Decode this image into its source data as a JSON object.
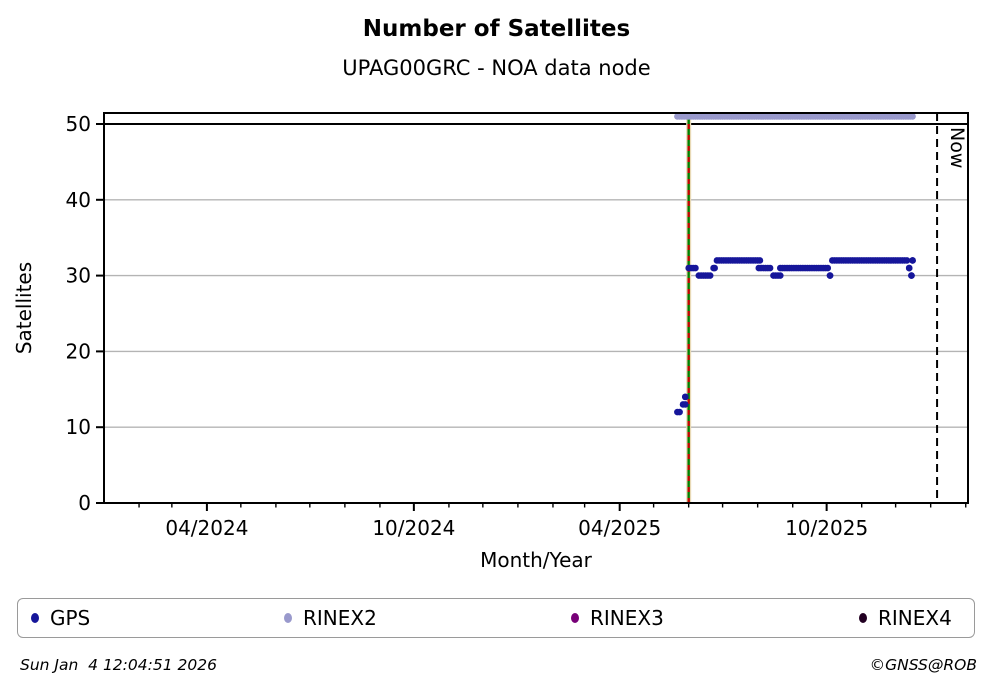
{
  "title": "Number of Satellites",
  "subtitle": "UPAG00GRC - NOA data node",
  "footer": {
    "timestamp": "Sun Jan  4 12:04:51 2026",
    "copyright": "©GNSS@ROB"
  },
  "legend": [
    {
      "label": "GPS",
      "color": "#16169a"
    },
    {
      "label": "RINEX2",
      "color": "#9999cc"
    },
    {
      "label": "RINEX3",
      "color": "#770077"
    },
    {
      "label": "RINEX4",
      "color": "#220022"
    }
  ],
  "chart_data": {
    "type": "scatter",
    "title": "Number of Satellites",
    "subtitle": "UPAG00GRC - NOA data node",
    "xlabel": "Month/Year",
    "ylabel": "Satellites",
    "x_range": [
      "2024-01-01",
      "2026-02-03"
    ],
    "ylim": [
      0,
      51.5
    ],
    "y_ticks": [
      0,
      10,
      20,
      30,
      40,
      50
    ],
    "grid_y_values": [
      10,
      20,
      30,
      40
    ],
    "grid": "horizontal-only",
    "legend_position": "bottom",
    "x_major_ticks": [
      {
        "label": "04/2024",
        "date": "2024-04-01"
      },
      {
        "label": "10/2024",
        "date": "2024-10-01"
      },
      {
        "label": "04/2025",
        "date": "2025-04-01"
      },
      {
        "label": "10/2025",
        "date": "2025-10-01"
      }
    ],
    "x_minor_ticks": "monthly",
    "reference_lines": {
      "max_satellites": {
        "value": 50,
        "color": "#000000",
        "style": "solid"
      },
      "event": {
        "date": "2025-06-01",
        "line_color": "#008000",
        "dash_color": "#cc0000",
        "band_color": "#e8d9b5",
        "style": "green solid with red dashes over wheat band"
      },
      "now": {
        "date": "2026-01-04",
        "label": "Now",
        "color": "#000000",
        "style": "dashed"
      }
    },
    "series": [
      {
        "name": "GPS",
        "color": "#16169a",
        "segments": [
          {
            "value": 12,
            "start": "2025-05-22",
            "end": "2025-05-25"
          },
          {
            "value": 13,
            "start": "2025-05-27",
            "end": "2025-05-30"
          },
          {
            "value": 14,
            "start": "2025-05-29",
            "end": "2025-05-29"
          },
          {
            "value": 31,
            "start": "2025-06-01",
            "end": "2025-06-08"
          },
          {
            "value": 30,
            "start": "2025-06-10",
            "end": "2025-06-21"
          },
          {
            "value": 31,
            "start": "2025-06-23",
            "end": "2025-06-24"
          },
          {
            "value": 32,
            "start": "2025-06-26",
            "end": "2025-08-04"
          },
          {
            "value": 31,
            "start": "2025-08-02",
            "end": "2025-08-13"
          },
          {
            "value": 30,
            "start": "2025-08-15",
            "end": "2025-08-22"
          },
          {
            "value": 31,
            "start": "2025-08-21",
            "end": "2025-10-02"
          },
          {
            "value": 30,
            "start": "2025-10-04",
            "end": "2025-10-04"
          },
          {
            "value": 32,
            "start": "2025-10-06",
            "end": "2025-12-11"
          },
          {
            "value": 31,
            "start": "2025-12-13",
            "end": "2025-12-13"
          },
          {
            "value": 30,
            "start": "2025-12-15",
            "end": "2025-12-15"
          },
          {
            "value": 32,
            "start": "2025-12-16",
            "end": "2025-12-16"
          }
        ]
      },
      {
        "name": "RINEX2",
        "color": "#9999cc",
        "segments": [
          {
            "value": 51,
            "start": "2025-05-22",
            "end": "2025-12-17"
          }
        ]
      },
      {
        "name": "RINEX3",
        "color": "#770077",
        "segments": []
      },
      {
        "name": "RINEX4",
        "color": "#220022",
        "segments": []
      }
    ]
  }
}
